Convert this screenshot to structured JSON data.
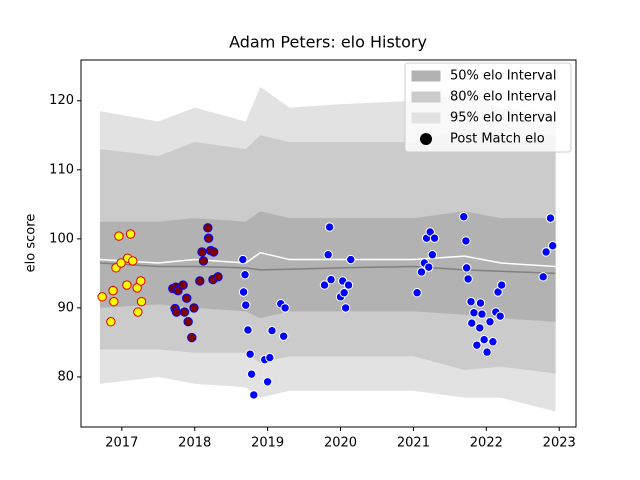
{
  "chart_data": {
    "type": "scatter",
    "title": "Adam Peters: elo History",
    "y_label": "elo score",
    "xlim": [
      2016.44,
      2023.23
    ],
    "ylim": [
      72.75,
      125.9
    ],
    "xticks": [
      2017,
      2018,
      2019,
      2020,
      2021,
      2022,
      2023
    ],
    "yticks": [
      80,
      90,
      100,
      110,
      120
    ],
    "legend": "upper right",
    "band_x": [
      2016.7,
      2017.5,
      2018.0,
      2018.7,
      2018.9,
      2019.3,
      2020.0,
      2021.0,
      2021.7,
      2022.2,
      2022.95
    ],
    "bands": [
      {
        "name": "95% elo Interval",
        "color": "#e2e2e2",
        "upper": [
          118.5,
          117,
          119,
          117,
          122,
          119,
          119.5,
          120,
          121,
          119,
          118
        ],
        "lower": [
          79,
          80,
          79,
          78.5,
          77,
          78,
          78,
          78,
          77,
          77,
          75
        ]
      },
      {
        "name": "80% elo Interval",
        "color": "#cbcbcb",
        "upper": [
          113,
          112,
          114,
          113,
          115,
          114,
          114,
          114,
          116,
          115,
          115
        ],
        "lower": [
          84,
          84,
          83.5,
          83.5,
          82,
          83,
          83,
          83,
          81,
          81.5,
          80.5
        ]
      },
      {
        "name": "50% elo Interval",
        "color": "#b2b2b2",
        "upper": [
          102.5,
          102.5,
          103,
          102.5,
          104,
          103,
          103,
          103,
          104,
          103,
          103
        ],
        "lower": [
          90,
          90.5,
          90,
          89.5,
          88.5,
          89.5,
          89.5,
          89.5,
          89,
          88.5,
          88
        ]
      }
    ],
    "lines": [
      {
        "color": "#808080",
        "values": [
          96.5,
          96,
          96,
          95.8,
          95.5,
          95.6,
          95.8,
          96,
          95.5,
          95.3,
          95
        ]
      },
      {
        "color": "#ffffff",
        "values": [
          97,
          96.5,
          97,
          96.5,
          98,
          97,
          97,
          97,
          97.5,
          96.5,
          96
        ]
      }
    ],
    "scatter": {
      "name": "Post Match elo",
      "legend_color": "#000000",
      "groups": [
        {
          "fill": "#ffff00",
          "edge": "#dd0000",
          "x": [
            2016.73,
            2016.85,
            2016.88,
            2016.89,
            2016.92,
            2016.96,
            2016.99,
            2017.07,
            2017.08,
            2017.12,
            2017.15,
            2017.21,
            2017.22,
            2017.26,
            2017.27
          ],
          "y": [
            91.6,
            88.0,
            92.5,
            90.9,
            95.8,
            100.4,
            96.5,
            93.3,
            97.2,
            100.7,
            96.8,
            92.9,
            89.4,
            93.9,
            90.9
          ]
        },
        {
          "fill": "#800000",
          "edge": "#0000ff",
          "x": [
            2017.7,
            2017.73,
            2017.74,
            2017.75,
            2017.77,
            2017.84,
            2017.86,
            2017.89,
            2017.91,
            2017.96,
            2017.99,
            2018.07,
            2018.1,
            2018.12,
            2018.18,
            2018.19,
            2018.22,
            2018.25,
            2018.26,
            2018.32
          ],
          "y": [
            92.8,
            89.9,
            93.0,
            89.4,
            92.5,
            93.3,
            89.4,
            91.4,
            88.0,
            85.7,
            90.0,
            93.9,
            98.1,
            96.8,
            101.6,
            100.1,
            98.3,
            94.1,
            98.1,
            94.5
          ]
        },
        {
          "fill": "#0000ff",
          "edge": "#ffffff",
          "x": [
            2018.66,
            2018.69,
            2018.67,
            2018.7,
            2018.73,
            2018.76,
            2018.78,
            2018.81,
            2018.96,
            2019.0,
            2019.03,
            2019.06,
            2019.18,
            2019.24,
            2019.22,
            2019.78,
            2019.83,
            2019.85,
            2019.87,
            2020.0,
            2020.03,
            2020.05,
            2020.07,
            2020.11,
            2020.14,
            2021.05,
            2021.11,
            2021.15,
            2021.18,
            2021.21,
            2021.23,
            2021.26,
            2021.29,
            2021.69,
            2021.72,
            2021.73,
            2021.75,
            2021.79,
            2021.8,
            2021.83,
            2021.87,
            2021.91,
            2021.92,
            2021.94,
            2021.97,
            2022.01,
            2022.05,
            2022.09,
            2022.13,
            2022.16,
            2022.19,
            2022.21,
            2022.78,
            2022.82,
            2022.88,
            2022.91
          ],
          "y": [
            97.0,
            94.8,
            92.3,
            90.4,
            86.8,
            83.3,
            80.4,
            77.4,
            82.5,
            79.3,
            82.8,
            86.7,
            90.6,
            90.0,
            85.9,
            93.3,
            97.7,
            101.7,
            94.1,
            91.6,
            93.9,
            92.2,
            90.0,
            93.3,
            97.0,
            92.2,
            95.2,
            96.5,
            100.1,
            95.9,
            101.0,
            97.7,
            100.1,
            103.2,
            99.7,
            95.8,
            94.2,
            90.9,
            87.8,
            89.3,
            84.6,
            87.1,
            90.7,
            89.1,
            85.4,
            83.6,
            88.0,
            85.1,
            89.4,
            92.3,
            88.8,
            93.3,
            94.5,
            98.1,
            103.0,
            99.0
          ]
        }
      ]
    }
  }
}
